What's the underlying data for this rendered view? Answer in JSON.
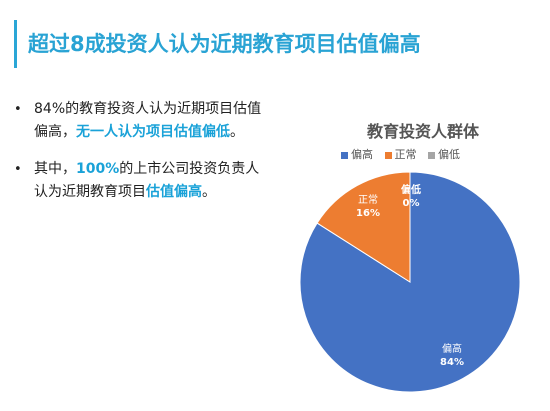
{
  "header": {
    "title": "超过8成投资人认为近期教育项目估值偏高"
  },
  "bullets": [
    {
      "parts": [
        {
          "text": "84%的教育投资人认为近期项目估值偏高，",
          "hl": false
        },
        {
          "text": "无一人认为项目估值偏低",
          "hl": true
        },
        {
          "text": "。",
          "hl": false
        }
      ]
    },
    {
      "parts": [
        {
          "text": "其中，",
          "hl": false
        },
        {
          "text": "100%",
          "hl": true
        },
        {
          "text": "的上市公司投资负责人认为近期教育项目",
          "hl": false
        },
        {
          "text": "估值偏高",
          "hl": true
        },
        {
          "text": "。",
          "hl": false
        }
      ]
    }
  ],
  "chart_data": {
    "type": "pie",
    "title": "教育投资人群体",
    "legend_position": "top",
    "categories": [
      "偏高",
      "正常",
      "偏低"
    ],
    "values": [
      84,
      16,
      0
    ],
    "labels": [
      "84%",
      "16%",
      "0%"
    ],
    "colors": [
      "#4472c4",
      "#ed7d31",
      "#a5a5a5"
    ]
  }
}
